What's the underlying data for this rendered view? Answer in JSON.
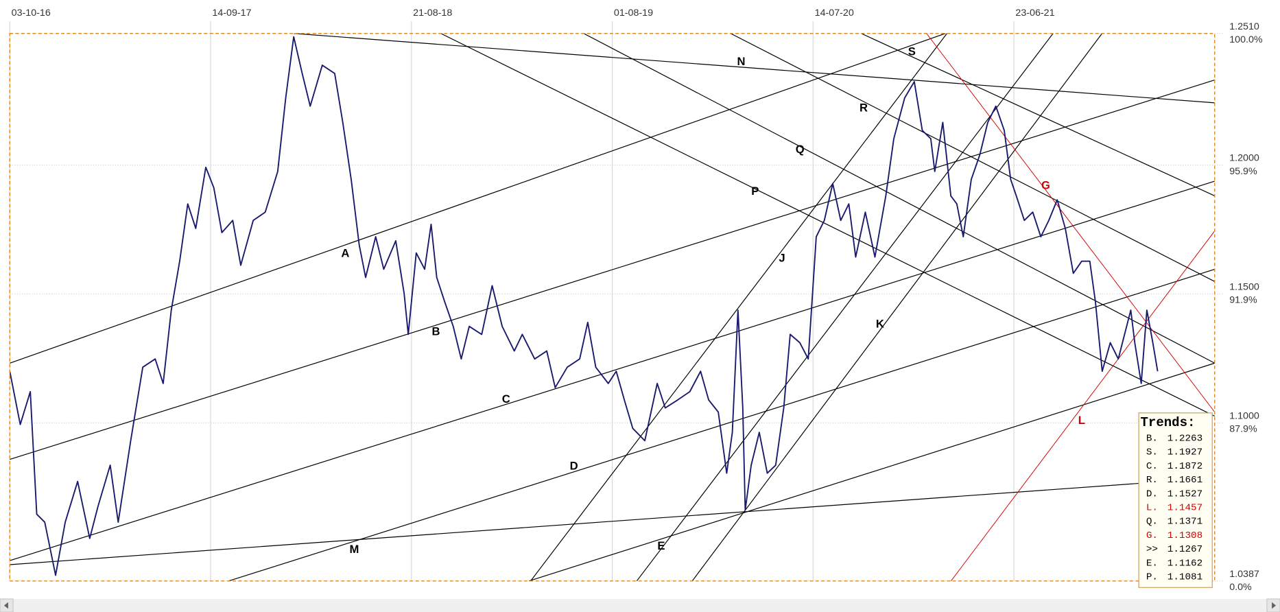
{
  "chart_data": {
    "type": "line",
    "xlim": [
      0,
      300
    ],
    "xticks": [
      {
        "value": 0,
        "label": "03-10-16"
      },
      {
        "value": 50,
        "label": "14-09-17"
      },
      {
        "value": 100,
        "label": "21-08-18"
      },
      {
        "value": 150,
        "label": "01-08-19"
      },
      {
        "value": 200,
        "label": "14-07-20"
      },
      {
        "value": 250,
        "label": "23-06-21"
      }
    ],
    "ylim": [
      1.0387,
      1.251
    ],
    "yticks": [
      {
        "value": 1.251,
        "label": "1.2510"
      },
      {
        "value": 1.2,
        "label": "1.2000"
      },
      {
        "value": 1.15,
        "label": "1.1500"
      },
      {
        "value": 1.1,
        "label": "1.1000"
      },
      {
        "value": 1.0387,
        "label": "1.0387"
      }
    ],
    "y_percent_labels": [
      "100.0%",
      "95.9%",
      "91.9%",
      "87.9%",
      "0.0%"
    ],
    "grid": true,
    "x": [
      0,
      2.6,
      5.1,
      6.7,
      8.7,
      11.4,
      13.8,
      16.9,
      19.9,
      22,
      25,
      27,
      30.1,
      33.1,
      36.2,
      38.2,
      40.2,
      42.3,
      44.3,
      46.3,
      48.8,
      50.8,
      52.8,
      55.5,
      57.5,
      60.6,
      63.6,
      66.7,
      68.7,
      70.7,
      72.8,
      74.8,
      77.8,
      80.9,
      82.9,
      85,
      87,
      88.6,
      91.1,
      93.1,
      96.1,
      98.2,
      99.2,
      101.2,
      103.3,
      104.9,
      106.3,
      108.3,
      110.4,
      112.4,
      114.4,
      117.5,
      120.1,
      122.6,
      125.6,
      127.6,
      130.7,
      133.7,
      135.8,
      138.8,
      141.9,
      143.9,
      145.9,
      149,
      151,
      153,
      155.1,
      158.1,
      161.2,
      163.2,
      166.3,
      169.3,
      172,
      174,
      176.4,
      178.5,
      179.9,
      181.3,
      182.5,
      183.1,
      184.6,
      186.6,
      188.6,
      190.7,
      192.7,
      194.3,
      196.7,
      198.8,
      200.8,
      202.8,
      204.9,
      206.9,
      208.9,
      210.6,
      213,
      215.4,
      218.1,
      220.1,
      222.8,
      225.2,
      227.2,
      229.3,
      230.3,
      232.3,
      234.3,
      235.8,
      237.4,
      239.4,
      241.5,
      243.5,
      245.5,
      247.6,
      249.2,
      250.6,
      252.6,
      254.7,
      256.7,
      258.7,
      260.8,
      262.8,
      264.8,
      266.9,
      268.9,
      270.3,
      272,
      274,
      276,
      279.1,
      280.1,
      281.7,
      283.1,
      284.6,
      285.8
    ],
    "series": [
      {
        "color": "#1a1a6e",
        "values": [
          1.12,
          1.0994,
          1.1121,
          1.0646,
          1.0615,
          1.0409,
          1.0615,
          1.0773,
          1.0552,
          1.0678,
          1.0836,
          1.0615,
          1.0931,
          1.1216,
          1.1248,
          1.1153,
          1.1437,
          1.1627,
          1.1849,
          1.1754,
          1.1991,
          1.1912,
          1.1738,
          1.1785,
          1.1611,
          1.1785,
          1.1817,
          1.1975,
          1.226,
          1.2497,
          1.2355,
          1.2228,
          1.2387,
          1.2355,
          1.2165,
          1.1944,
          1.1691,
          1.1564,
          1.1722,
          1.1596,
          1.1706,
          1.1501,
          1.1343,
          1.1659,
          1.1596,
          1.177,
          1.1564,
          1.1469,
          1.1374,
          1.1248,
          1.1374,
          1.1343,
          1.1532,
          1.1374,
          1.1279,
          1.1343,
          1.1248,
          1.1279,
          1.1137,
          1.1216,
          1.1248,
          1.139,
          1.1216,
          1.1153,
          1.12,
          1.1089,
          1.0979,
          1.0931,
          1.1153,
          1.1058,
          1.1089,
          1.1121,
          1.12,
          1.1089,
          1.1042,
          1.0805,
          1.0963,
          1.1437,
          1.1058,
          1.0662,
          1.0836,
          1.0963,
          1.0805,
          1.0836,
          1.1058,
          1.1343,
          1.1311,
          1.1248,
          1.1722,
          1.1785,
          1.1928,
          1.1785,
          1.1849,
          1.1643,
          1.1817,
          1.1643,
          1.188,
          1.2102,
          1.226,
          1.2323,
          1.2134,
          1.2102,
          1.1975,
          1.2165,
          1.188,
          1.1849,
          1.1722,
          1.1944,
          1.2039,
          1.2165,
          1.2228,
          1.2134,
          1.1944,
          1.188,
          1.1785,
          1.1817,
          1.1722,
          1.1785,
          1.1865,
          1.1754,
          1.158,
          1.1627,
          1.1627,
          1.1469,
          1.12,
          1.1311,
          1.1248,
          1.1437,
          1.1311,
          1.1153,
          1.1437,
          1.1311,
          1.12
        ]
      }
    ],
    "annotations": [
      {
        "text": "N",
        "color": "#000000"
      },
      {
        "text": "S",
        "color": "#000000"
      },
      {
        "text": "R",
        "color": "#000000"
      },
      {
        "text": "Q",
        "color": "#000000"
      },
      {
        "text": "P",
        "color": "#000000"
      },
      {
        "text": "A",
        "color": "#000000"
      },
      {
        "text": "B",
        "color": "#000000"
      },
      {
        "text": "C",
        "color": "#000000"
      },
      {
        "text": "D",
        "color": "#000000"
      },
      {
        "text": "E",
        "color": "#000000"
      },
      {
        "text": "M",
        "color": "#000000"
      },
      {
        "text": "J",
        "color": "#000000"
      },
      {
        "text": "K",
        "color": "#000000"
      },
      {
        "text": "G",
        "color": "#d40000"
      },
      {
        "text": "L",
        "color": "#d40000"
      }
    ],
    "trends": {
      "title": "Trends:",
      "rows": [
        {
          "label": "B.",
          "value": 1.2263,
          "color": "#000000"
        },
        {
          "label": "S.",
          "value": 1.1927,
          "color": "#000000"
        },
        {
          "label": "C.",
          "value": 1.1872,
          "color": "#000000"
        },
        {
          "label": "R.",
          "value": 1.1661,
          "color": "#000000"
        },
        {
          "label": "D.",
          "value": 1.1527,
          "color": "#000000"
        },
        {
          "label": "L.",
          "value": 1.1457,
          "color": "#d40000"
        },
        {
          "label": "Q.",
          "value": 1.1371,
          "color": "#000000"
        },
        {
          "label": "G.",
          "value": 1.1308,
          "color": "#d40000"
        },
        {
          "label": ">>",
          "value": 1.1267,
          "color": "#000000"
        },
        {
          "label": "E.",
          "value": 1.1162,
          "color": "#000000"
        },
        {
          "label": "P.",
          "value": 1.1081,
          "color": "#000000"
        }
      ]
    }
  }
}
